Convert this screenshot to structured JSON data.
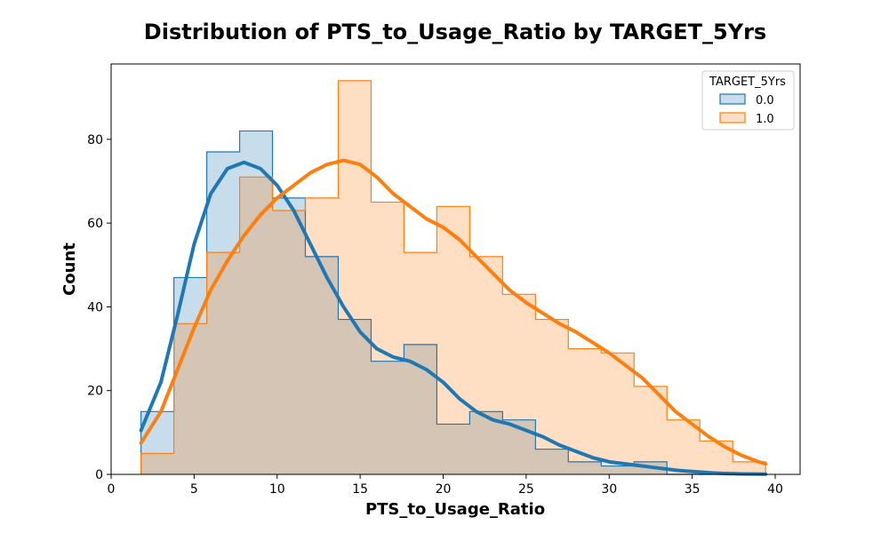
{
  "chart_data": {
    "type": "histogram",
    "title": "Distribution of PTS_to_Usage_Ratio by TARGET_5Yrs",
    "xlabel": "PTS_to_Usage_Ratio",
    "ylabel": "Count",
    "xlim": [
      0,
      41.5
    ],
    "ylim": [
      0,
      98
    ],
    "xticks": [
      0,
      5,
      10,
      15,
      20,
      25,
      30,
      35,
      40
    ],
    "yticks": [
      0,
      20,
      40,
      60,
      80
    ],
    "bin_edges": [
      1.8,
      3.78,
      5.76,
      7.74,
      9.72,
      11.7,
      13.68,
      15.66,
      17.64,
      19.62,
      21.6,
      23.58,
      25.56,
      27.54,
      29.52,
      31.5,
      33.48,
      35.46,
      37.44,
      39.42
    ],
    "legend": {
      "title": "TARGET_5Yrs",
      "position": "upper right"
    },
    "series": [
      {
        "name": "0.0",
        "color": "#1f77b4",
        "fill": "#1f77b4",
        "counts": [
          15,
          47,
          77,
          82,
          66,
          52,
          37,
          27,
          31,
          12,
          15,
          13,
          6,
          3,
          2,
          3,
          0,
          0,
          0
        ],
        "kde": [
          [
            1.8,
            10.5
          ],
          [
            3,
            22
          ],
          [
            4,
            38
          ],
          [
            5,
            55
          ],
          [
            6,
            67
          ],
          [
            7,
            73
          ],
          [
            8,
            74.5
          ],
          [
            9,
            73
          ],
          [
            10,
            69
          ],
          [
            11,
            63
          ],
          [
            12,
            55
          ],
          [
            13,
            47
          ],
          [
            14,
            40
          ],
          [
            15,
            34
          ],
          [
            16,
            30
          ],
          [
            17,
            28
          ],
          [
            18,
            27
          ],
          [
            19,
            25
          ],
          [
            20,
            22
          ],
          [
            21,
            18
          ],
          [
            22,
            15
          ],
          [
            23,
            13
          ],
          [
            24,
            12
          ],
          [
            25,
            10.5
          ],
          [
            26,
            9
          ],
          [
            27,
            7
          ],
          [
            28,
            5.5
          ],
          [
            29,
            4
          ],
          [
            30,
            3
          ],
          [
            31,
            2.5
          ],
          [
            32,
            2
          ],
          [
            33,
            1.5
          ],
          [
            34,
            1
          ],
          [
            35,
            0.7
          ],
          [
            36,
            0.4
          ],
          [
            37,
            0.2
          ],
          [
            38,
            0.1
          ],
          [
            39.42,
            0.05
          ]
        ]
      },
      {
        "name": "1.0",
        "color": "#ff7f0e",
        "fill": "#ff7f0e",
        "counts": [
          5,
          36,
          53,
          71,
          63,
          66,
          94,
          65,
          53,
          64,
          52,
          43,
          37,
          30,
          29,
          21,
          13,
          8,
          3
        ],
        "kde": [
          [
            1.8,
            7.5
          ],
          [
            3,
            15
          ],
          [
            4,
            25
          ],
          [
            5,
            35
          ],
          [
            6,
            44
          ],
          [
            7,
            51
          ],
          [
            8,
            57
          ],
          [
            9,
            62
          ],
          [
            10,
            66
          ],
          [
            11,
            69
          ],
          [
            12,
            72
          ],
          [
            13,
            74
          ],
          [
            14,
            75
          ],
          [
            15,
            74
          ],
          [
            16,
            71
          ],
          [
            17,
            67
          ],
          [
            18,
            64
          ],
          [
            19,
            61
          ],
          [
            20,
            59
          ],
          [
            21,
            56
          ],
          [
            22,
            52
          ],
          [
            23,
            48
          ],
          [
            24,
            44
          ],
          [
            25,
            41
          ],
          [
            26,
            38.5
          ],
          [
            27,
            36
          ],
          [
            28,
            34
          ],
          [
            29,
            31.5
          ],
          [
            30,
            29
          ],
          [
            31,
            26
          ],
          [
            32,
            23
          ],
          [
            33,
            19
          ],
          [
            34,
            15
          ],
          [
            35,
            12
          ],
          [
            36,
            9
          ],
          [
            37,
            6.5
          ],
          [
            38,
            4.5
          ],
          [
            39,
            3
          ],
          [
            39.42,
            2.5
          ]
        ]
      }
    ]
  }
}
